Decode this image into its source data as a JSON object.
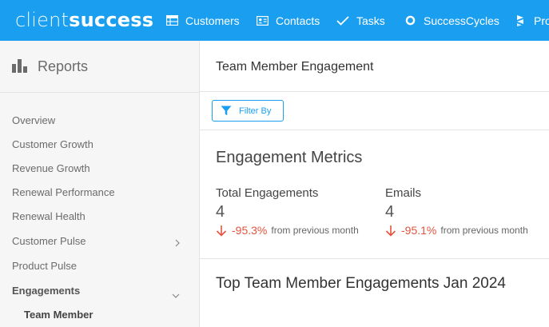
{
  "brand": {
    "part1": "client",
    "part2": "success"
  },
  "nav": [
    {
      "label": "Customers",
      "icon": "table-icon"
    },
    {
      "label": "Contacts",
      "icon": "contact-card-icon"
    },
    {
      "label": "Tasks",
      "icon": "checkmark-icon"
    },
    {
      "label": "SuccessCycles",
      "icon": "cycle-icon"
    },
    {
      "label": "Pro",
      "icon": "stack-icon"
    }
  ],
  "sidebar": {
    "title": "Reports",
    "items": [
      {
        "label": "Overview"
      },
      {
        "label": "Customer Growth"
      },
      {
        "label": "Revenue Growth"
      },
      {
        "label": "Renewal Performance"
      },
      {
        "label": "Renewal Health"
      },
      {
        "label": "Customer Pulse"
      },
      {
        "label": "Product Pulse"
      },
      {
        "label": "Engagements"
      },
      {
        "label": "Team Member"
      }
    ]
  },
  "main": {
    "title": "Team Member Engagement",
    "filter_label": "Filter By",
    "metrics_title": "Engagement Metrics",
    "metrics": [
      {
        "label": "Total Engagements",
        "value": "4",
        "change": "-95.3%",
        "suffix": "from previous month"
      },
      {
        "label": "Emails",
        "value": "4",
        "change": "-95.1%",
        "suffix": "from previous month"
      }
    ],
    "section_title": "Top Team Member Engagements Jan 2024"
  },
  "colors": {
    "brand_blue": "#1a9ff0",
    "negative": "#e5533d"
  }
}
